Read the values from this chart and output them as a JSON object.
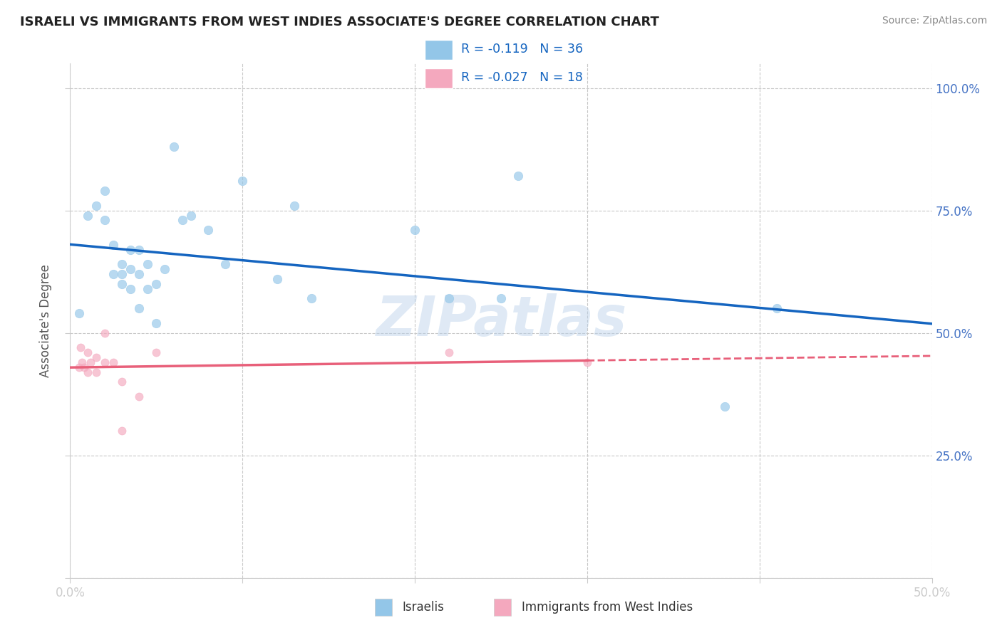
{
  "title": "ISRAELI VS IMMIGRANTS FROM WEST INDIES ASSOCIATE'S DEGREE CORRELATION CHART",
  "source": "Source: ZipAtlas.com",
  "ylabel_label": "Associate's Degree",
  "xlim": [
    0.0,
    0.5
  ],
  "ylim": [
    0.0,
    1.05
  ],
  "xticks": [
    0.0,
    0.1,
    0.2,
    0.3,
    0.4,
    0.5
  ],
  "xtick_labels": [
    "0.0%",
    "",
    "",
    "",
    "",
    "50.0%"
  ],
  "yticks": [
    0.0,
    0.25,
    0.5,
    0.75,
    1.0
  ],
  "ytick_right_labels": [
    "",
    "25.0%",
    "50.0%",
    "75.0%",
    "100.0%"
  ],
  "grid_color": "#c8c8c8",
  "watermark": "ZIPatlas",
  "legend_r1": " -0.119",
  "legend_n1": "36",
  "legend_r2": "-0.027",
  "legend_n2": "18",
  "israelis_color": "#93c6e8",
  "immigrants_color": "#f4a8be",
  "israelis_line_color": "#1565c0",
  "immigrants_line_color": "#e8607a",
  "israelis_x": [
    0.005,
    0.01,
    0.015,
    0.02,
    0.02,
    0.025,
    0.025,
    0.03,
    0.03,
    0.03,
    0.035,
    0.035,
    0.035,
    0.04,
    0.04,
    0.04,
    0.045,
    0.045,
    0.05,
    0.05,
    0.055,
    0.06,
    0.065,
    0.07,
    0.09,
    0.1,
    0.12,
    0.14,
    0.22,
    0.25,
    0.26,
    0.38,
    0.41,
    0.08,
    0.13,
    0.2
  ],
  "israelis_y": [
    0.54,
    0.74,
    0.76,
    0.73,
    0.79,
    0.62,
    0.68,
    0.6,
    0.62,
    0.64,
    0.59,
    0.63,
    0.67,
    0.55,
    0.62,
    0.67,
    0.59,
    0.64,
    0.52,
    0.6,
    0.63,
    0.88,
    0.73,
    0.74,
    0.64,
    0.81,
    0.61,
    0.57,
    0.57,
    0.57,
    0.82,
    0.35,
    0.55,
    0.71,
    0.76,
    0.71
  ],
  "immigrants_x": [
    0.005,
    0.006,
    0.007,
    0.008,
    0.01,
    0.01,
    0.012,
    0.015,
    0.015,
    0.02,
    0.02,
    0.025,
    0.03,
    0.03,
    0.04,
    0.05,
    0.22,
    0.3
  ],
  "immigrants_y": [
    0.43,
    0.47,
    0.44,
    0.43,
    0.42,
    0.46,
    0.44,
    0.45,
    0.42,
    0.44,
    0.5,
    0.44,
    0.3,
    0.4,
    0.37,
    0.46,
    0.46,
    0.44
  ],
  "marker_size": 80,
  "alpha": 0.65,
  "background_color": "#ffffff",
  "title_color": "#222222",
  "axis_label_color": "#555555",
  "tick_color": "#4472c4",
  "source_color": "#888888"
}
